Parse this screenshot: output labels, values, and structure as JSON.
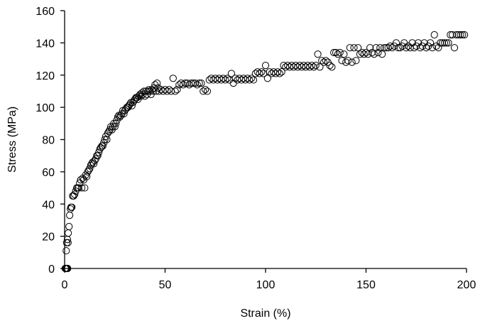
{
  "chart_data": {
    "type": "scatter",
    "xlabel": "Strain (%)",
    "ylabel": "Stress (MPa)",
    "xlim": [
      0,
      200
    ],
    "ylim": [
      0,
      160
    ],
    "xticks": [
      0,
      50,
      100,
      150,
      200
    ],
    "yticks": [
      0,
      20,
      40,
      60,
      80,
      100,
      120,
      140,
      160
    ],
    "grid": false,
    "legend": "none",
    "marker": "open-circle",
    "series": [
      {
        "points": [
          [
            0.3,
            0
          ],
          [
            0.6,
            0
          ],
          [
            0.9,
            0
          ],
          [
            1.2,
            0
          ],
          [
            1.5,
            0
          ],
          [
            0.8,
            11
          ],
          [
            1.0,
            16
          ],
          [
            1.7,
            16
          ],
          [
            1.4,
            18
          ],
          [
            1.8,
            22
          ],
          [
            2.2,
            26
          ],
          [
            2.5,
            33
          ],
          [
            2.9,
            37
          ],
          [
            3.2,
            38
          ],
          [
            3.6,
            38
          ],
          [
            4.0,
            45
          ],
          [
            4.5,
            45
          ],
          [
            5.0,
            46
          ],
          [
            5.5,
            48
          ],
          [
            6.0,
            50
          ],
          [
            6.5,
            50
          ],
          [
            7.0,
            50
          ],
          [
            7.5,
            53
          ],
          [
            8.0,
            55
          ],
          [
            8.5,
            50
          ],
          [
            9.0,
            56
          ],
          [
            9.5,
            55
          ],
          [
            10,
            50
          ],
          [
            10.5,
            58
          ],
          [
            11,
            57
          ],
          [
            11.5,
            60
          ],
          [
            12,
            61
          ],
          [
            12.5,
            62
          ],
          [
            13,
            64
          ],
          [
            13.5,
            65
          ],
          [
            14,
            66
          ],
          [
            14.5,
            65
          ],
          [
            15,
            67
          ],
          [
            15.5,
            68
          ],
          [
            16,
            70
          ],
          [
            16.5,
            70
          ],
          [
            17,
            72
          ],
          [
            17.5,
            74
          ],
          [
            18,
            75
          ],
          [
            18.5,
            76
          ],
          [
            19,
            76
          ],
          [
            19.5,
            78
          ],
          [
            20,
            80
          ],
          [
            20.5,
            82
          ],
          [
            21,
            80
          ],
          [
            21.5,
            84
          ],
          [
            22,
            85
          ],
          [
            22.5,
            86
          ],
          [
            23,
            88
          ],
          [
            23.5,
            86
          ],
          [
            24,
            88
          ],
          [
            24.5,
            90
          ],
          [
            25,
            88
          ],
          [
            25.5,
            90
          ],
          [
            26,
            92
          ],
          [
            26.5,
            94
          ],
          [
            27,
            95
          ],
          [
            27.5,
            94
          ],
          [
            28,
            95
          ],
          [
            28.5,
            96
          ],
          [
            29,
            98
          ],
          [
            29.5,
            96
          ],
          [
            30,
            98
          ],
          [
            30.5,
            99
          ],
          [
            31,
            100
          ],
          [
            31.5,
            100
          ],
          [
            32,
            101
          ],
          [
            32.5,
            102
          ],
          [
            33,
            103
          ],
          [
            33.5,
            101
          ],
          [
            34,
            103
          ],
          [
            34.5,
            104
          ],
          [
            35,
            105
          ],
          [
            35.5,
            106
          ],
          [
            36,
            106
          ],
          [
            36.5,
            105
          ],
          [
            37,
            107
          ],
          [
            37.5,
            108
          ],
          [
            38,
            107
          ],
          [
            38.5,
            109
          ],
          [
            39,
            108
          ],
          [
            39.5,
            110
          ],
          [
            40,
            107
          ],
          [
            40.5,
            110
          ],
          [
            41,
            108
          ],
          [
            41.5,
            110
          ],
          [
            42,
            111
          ],
          [
            42.5,
            110
          ],
          [
            43,
            108
          ],
          [
            43.5,
            111
          ],
          [
            44,
            110
          ],
          [
            44.5,
            112
          ],
          [
            45,
            114
          ],
          [
            45.5,
            110
          ],
          [
            46,
            115
          ],
          [
            46.5,
            112
          ],
          [
            47,
            110
          ],
          [
            48,
            111
          ],
          [
            49,
            110
          ],
          [
            50,
            111
          ],
          [
            51,
            110
          ],
          [
            52,
            111
          ],
          [
            53,
            110
          ],
          [
            54,
            118
          ],
          [
            55,
            110
          ],
          [
            56,
            111
          ],
          [
            57,
            114
          ],
          [
            58,
            115
          ],
          [
            59,
            114
          ],
          [
            60,
            115
          ],
          [
            61,
            115
          ],
          [
            62,
            114
          ],
          [
            63,
            115
          ],
          [
            64,
            115
          ],
          [
            65,
            115
          ],
          [
            66,
            114
          ],
          [
            67,
            115
          ],
          [
            68,
            115
          ],
          [
            69,
            110
          ],
          [
            70,
            111
          ],
          [
            71,
            110
          ],
          [
            72,
            117
          ],
          [
            73,
            118
          ],
          [
            74,
            117
          ],
          [
            75,
            118
          ],
          [
            76,
            117
          ],
          [
            77,
            118
          ],
          [
            78,
            117
          ],
          [
            79,
            118
          ],
          [
            80,
            117
          ],
          [
            81,
            118
          ],
          [
            82,
            117
          ],
          [
            83,
            121
          ],
          [
            84,
            115
          ],
          [
            85,
            118
          ],
          [
            86,
            117
          ],
          [
            87,
            118
          ],
          [
            88,
            117
          ],
          [
            89,
            118
          ],
          [
            90,
            117
          ],
          [
            91,
            118
          ],
          [
            92,
            117
          ],
          [
            93,
            118
          ],
          [
            94,
            117
          ],
          [
            95,
            121
          ],
          [
            96,
            122
          ],
          [
            97,
            121
          ],
          [
            98,
            122
          ],
          [
            99,
            121
          ],
          [
            100,
            126
          ],
          [
            101,
            118
          ],
          [
            102,
            122
          ],
          [
            103,
            121
          ],
          [
            104,
            122
          ],
          [
            105,
            121
          ],
          [
            106,
            122
          ],
          [
            107,
            121
          ],
          [
            108,
            122
          ],
          [
            109,
            126
          ],
          [
            110,
            125
          ],
          [
            111,
            126
          ],
          [
            112,
            125
          ],
          [
            113,
            126
          ],
          [
            114,
            125
          ],
          [
            115,
            126
          ],
          [
            116,
            125
          ],
          [
            117,
            126
          ],
          [
            118,
            125
          ],
          [
            119,
            126
          ],
          [
            120,
            125
          ],
          [
            121,
            126
          ],
          [
            122,
            125
          ],
          [
            123,
            126
          ],
          [
            124,
            125
          ],
          [
            125,
            126
          ],
          [
            126,
            133
          ],
          [
            127,
            125
          ],
          [
            128,
            129
          ],
          [
            129,
            128
          ],
          [
            130,
            129
          ],
          [
            131,
            128
          ],
          [
            132,
            126
          ],
          [
            133,
            125
          ],
          [
            134,
            134
          ],
          [
            135,
            134
          ],
          [
            136,
            133
          ],
          [
            137,
            134
          ],
          [
            138,
            129
          ],
          [
            139,
            133
          ],
          [
            140,
            128
          ],
          [
            141,
            129
          ],
          [
            142,
            137
          ],
          [
            143,
            128
          ],
          [
            144,
            137
          ],
          [
            145,
            129
          ],
          [
            146,
            137
          ],
          [
            147,
            133
          ],
          [
            148,
            134
          ],
          [
            149,
            133
          ],
          [
            150,
            134
          ],
          [
            151,
            133
          ],
          [
            152,
            137
          ],
          [
            153,
            134
          ],
          [
            154,
            133
          ],
          [
            155,
            137
          ],
          [
            156,
            134
          ],
          [
            157,
            137
          ],
          [
            158,
            133
          ],
          [
            159,
            137
          ],
          [
            160,
            137
          ],
          [
            161,
            137
          ],
          [
            162,
            138
          ],
          [
            163,
            137
          ],
          [
            164,
            138
          ],
          [
            165,
            140
          ],
          [
            166,
            137
          ],
          [
            167,
            137
          ],
          [
            168,
            138
          ],
          [
            169,
            140
          ],
          [
            170,
            137
          ],
          [
            171,
            138
          ],
          [
            172,
            137
          ],
          [
            173,
            140
          ],
          [
            174,
            137
          ],
          [
            175,
            138
          ],
          [
            176,
            140
          ],
          [
            177,
            137
          ],
          [
            178,
            138
          ],
          [
            179,
            140
          ],
          [
            180,
            137
          ],
          [
            181,
            138
          ],
          [
            182,
            140
          ],
          [
            183,
            137
          ],
          [
            184,
            145
          ],
          [
            185,
            138
          ],
          [
            186,
            137
          ],
          [
            187,
            140
          ],
          [
            188,
            140
          ],
          [
            189,
            140
          ],
          [
            190,
            140
          ],
          [
            191,
            140
          ],
          [
            192,
            145
          ],
          [
            193,
            145
          ],
          [
            194,
            137
          ],
          [
            195,
            145
          ],
          [
            196,
            145
          ],
          [
            197,
            145
          ],
          [
            198,
            145
          ],
          [
            199,
            145
          ]
        ]
      }
    ]
  }
}
